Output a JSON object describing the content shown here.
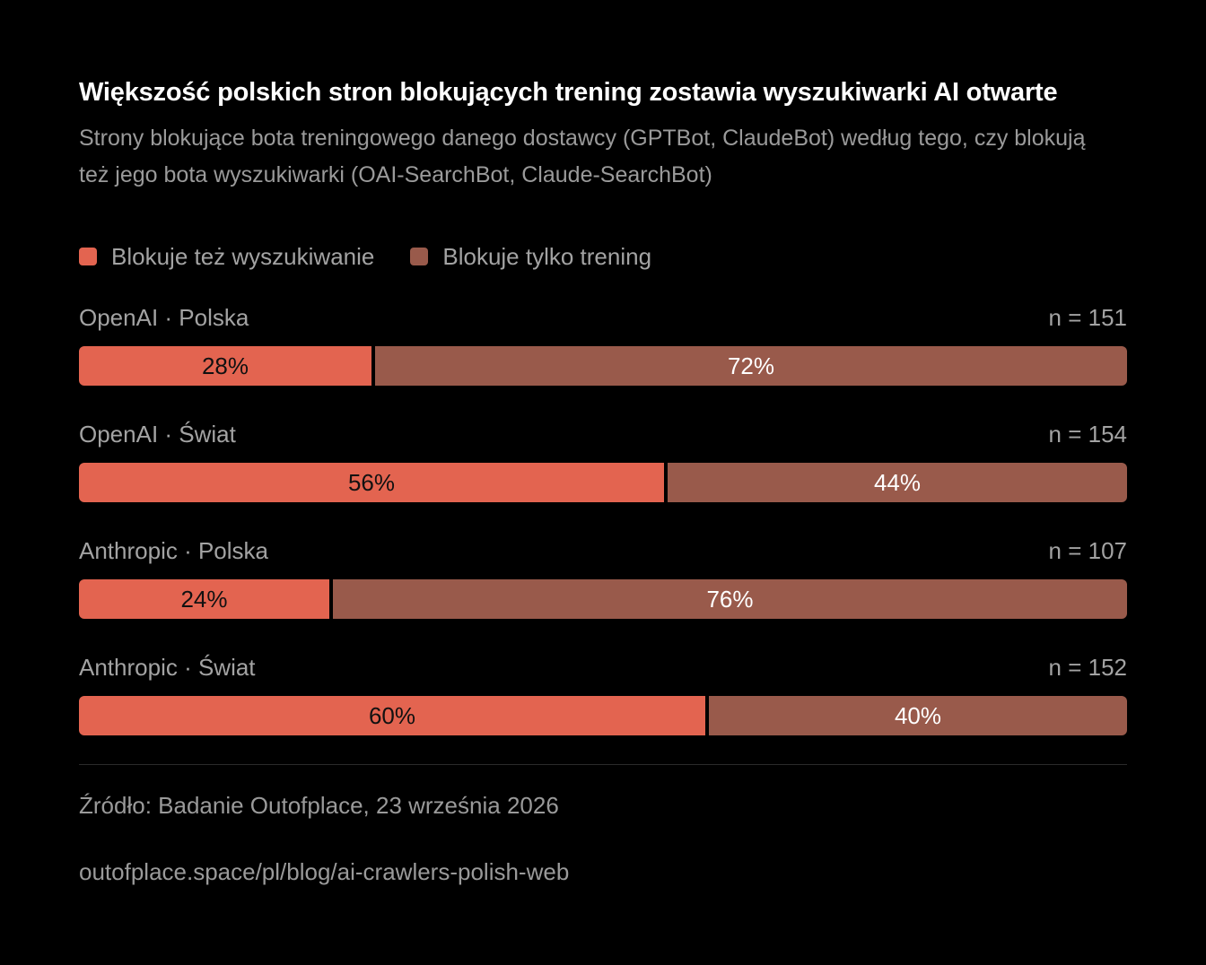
{
  "chart_data": {
    "type": "bar",
    "orientation": "horizontal-stacked-100",
    "title": "Większość polskich stron blokujących trening zostawia wyszukiwarki AI otwarte",
    "subtitle": "Strony blokujące bota treningowego danego dostawcy (GPTBot, ClaudeBot) według tego, czy blokują też jego bota wyszukiwarki (OAI-SearchBot, Claude-SearchBot)",
    "legend": {
      "placement": "top-left",
      "items": [
        {
          "name": "Blokuje też wyszukiwanie",
          "color": "#e36450"
        },
        {
          "name": "Blokuje tylko trening",
          "color": "#995a4b"
        }
      ]
    },
    "categories": [
      "OpenAI · Polska",
      "OpenAI · Świat",
      "Anthropic · Polska",
      "Anthropic · Świat"
    ],
    "n_labels": [
      "n = 151",
      "n = 154",
      "n = 107",
      "n = 152"
    ],
    "series": [
      {
        "name": "Blokuje też wyszukiwanie",
        "values": [
          28,
          56,
          24,
          60
        ],
        "color": "#e36450"
      },
      {
        "name": "Blokuje tylko trening",
        "values": [
          72,
          44,
          76,
          40
        ],
        "color": "#995a4b"
      }
    ],
    "value_suffix": "%",
    "xlim": [
      0,
      100
    ]
  },
  "footer": {
    "source": "Źródło: Badanie Outofplace, 23 września 2026",
    "url": "outofplace.space/pl/blog/ai-crawlers-polish-web"
  }
}
